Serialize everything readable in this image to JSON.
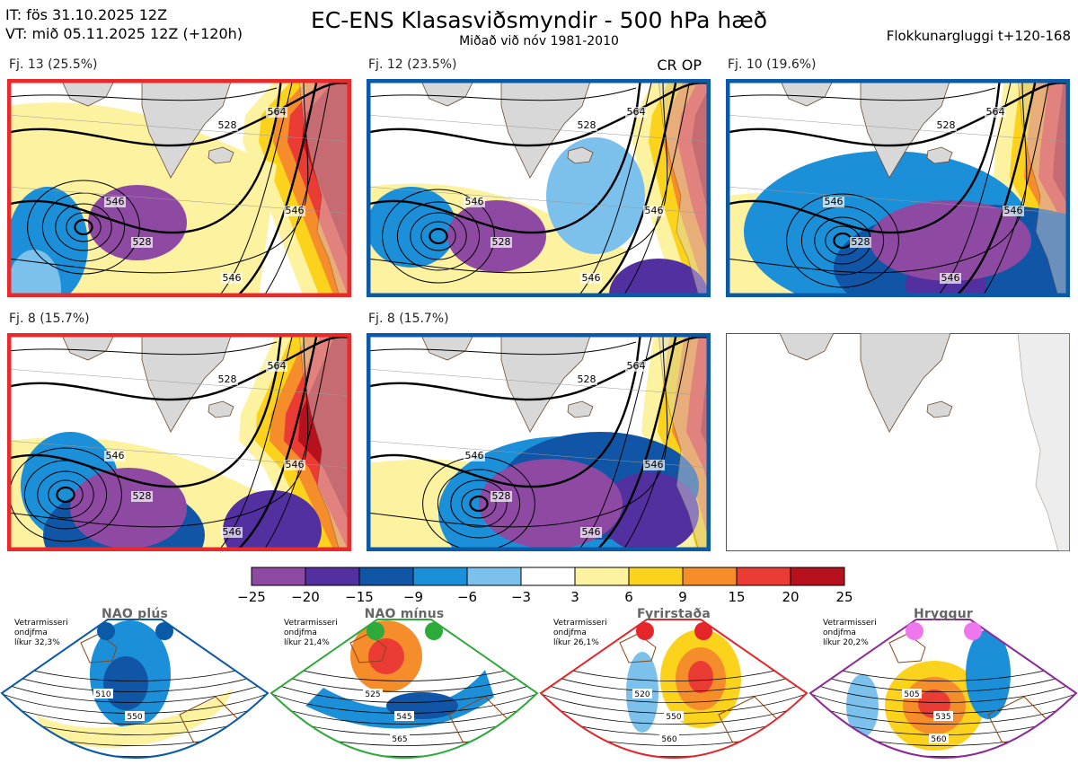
{
  "header": {
    "it_line": "IT: fös 31.10.2025 12Z",
    "vt_line": "VT: mið 05.11.2025 12Z  (+120h)",
    "title": "EC-ENS Klasasviðsmyndir - 500 hPa hæð",
    "subtitle": "Miðað við nóv 1981-2010",
    "window": "Flokkunargluggi t+120-168"
  },
  "panels": [
    {
      "label": "Fj. 13 (25.5%)",
      "regime_color": "#ea2a2a",
      "extra": "",
      "contours": [
        "528",
        "546",
        "564",
        "528",
        "546",
        "546"
      ]
    },
    {
      "label": "Fj. 12 (23.5%)",
      "regime_color": "#0b5aa8",
      "extra": "CR OP",
      "contours": [
        "528",
        "546",
        "564",
        "528",
        "546",
        "546"
      ]
    },
    {
      "label": "Fj. 10 (19.6%)",
      "regime_color": "#0b5aa8",
      "extra": "",
      "contours": [
        "528",
        "546",
        "564",
        "528",
        "546",
        "546"
      ]
    },
    {
      "label": "Fj. 8 (15.7%)",
      "regime_color": "#ea2a2a",
      "extra": "",
      "contours": [
        "528",
        "546",
        "564",
        "528",
        "546",
        "546"
      ]
    },
    {
      "label": "Fj. 8 (15.7%)",
      "regime_color": "#0b5aa8",
      "extra": "",
      "contours": [
        "528",
        "546",
        "564",
        "528",
        "546",
        "546"
      ]
    }
  ],
  "colorbar": {
    "ticks": [
      "−25",
      "−20",
      "−15",
      "−9",
      "−6",
      "−3",
      "3",
      "6",
      "9",
      "15",
      "20",
      "25"
    ],
    "colors": [
      "#8e4aa3",
      "#5230a0",
      "#1156a6",
      "#1b8fd8",
      "#7cc0ec",
      "#ffffff",
      "#fdf2a0",
      "#fcd31c",
      "#f68d2b",
      "#ea3b34",
      "#b8111e"
    ]
  },
  "regimes": [
    {
      "name": "NAO plús",
      "color": "#0b5aa8",
      "note": [
        "Vetrarmisseri",
        "ondjfma",
        "líkur 32,3%"
      ],
      "contours": [
        "510",
        "550"
      ]
    },
    {
      "name": "NAO mínus",
      "color": "#2eaa3a",
      "note": [
        "Vetrarmisseri",
        "ondjfma",
        "líkur 21,4%"
      ],
      "contours": [
        "525",
        "545",
        "565"
      ]
    },
    {
      "name": "Fyrirstaða",
      "color": "#e4262a",
      "note": [
        "Vetrarmisseri",
        "ondjfma",
        "líkur 26,1%"
      ],
      "contours": [
        "520",
        "550",
        "560"
      ]
    },
    {
      "name": "Hryggur",
      "color": "#8d2a96",
      "dot_color": "#ee77ee",
      "note": [
        "Vetrarmisseri",
        "ondjfma",
        "líkur 20,2%"
      ],
      "contours": [
        "505",
        "535",
        "560"
      ]
    }
  ],
  "chart_data": {
    "type": "heatmap",
    "title": "EC-ENS Klasasviðsmyndir - 500 hPa hæð",
    "subtitle": "Miðað við nóv 1981-2010",
    "colorbar_levels": [
      -25,
      -20,
      -15,
      -9,
      -6,
      -3,
      3,
      6,
      9,
      15,
      20,
      25
    ],
    "clusters": [
      {
        "name": "Fj. 13",
        "probability_pct": 25.5,
        "regime": "Fyrirstaða"
      },
      {
        "name": "Fj. 12",
        "probability_pct": 23.5,
        "regime": "NAO plús",
        "note": "CR OP"
      },
      {
        "name": "Fj. 10",
        "probability_pct": 19.6,
        "regime": "NAO plús"
      },
      {
        "name": "Fj. 8",
        "probability_pct": 15.7,
        "regime": "Fyrirstaða"
      },
      {
        "name": "Fj. 8",
        "probability_pct": 15.7,
        "regime": "NAO plús"
      }
    ],
    "regime_climatology_pct": {
      "NAO plús": 32.3,
      "NAO mínus": 21.4,
      "Fyrirstaða": 26.1,
      "Hryggur": 20.2
    }
  }
}
